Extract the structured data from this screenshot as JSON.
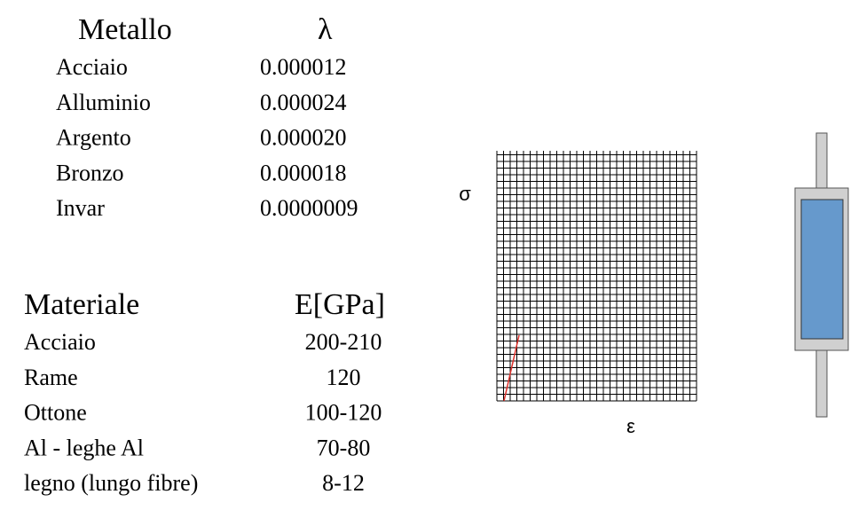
{
  "table1": {
    "header": [
      "Metallo",
      "λ"
    ],
    "rows": [
      [
        "Acciaio",
        "0.000012"
      ],
      [
        "Alluminio",
        "0.000024"
      ],
      [
        "Argento",
        "0.000020"
      ],
      [
        "Bronzo",
        "0.000018"
      ],
      [
        "Invar",
        "0.0000009"
      ]
    ]
  },
  "table2": {
    "header": [
      "Materiale",
      "E[GPa]"
    ],
    "rows": [
      [
        "Acciaio",
        "200-210"
      ],
      [
        "Rame",
        "120"
      ],
      [
        "Ottone",
        "100-120"
      ],
      [
        "Al - leghe Al",
        "70-80"
      ],
      [
        "legno (lungo fibre)",
        "8-12"
      ]
    ]
  },
  "diagram": {
    "y_label": "σ",
    "x_label": "ε"
  }
}
